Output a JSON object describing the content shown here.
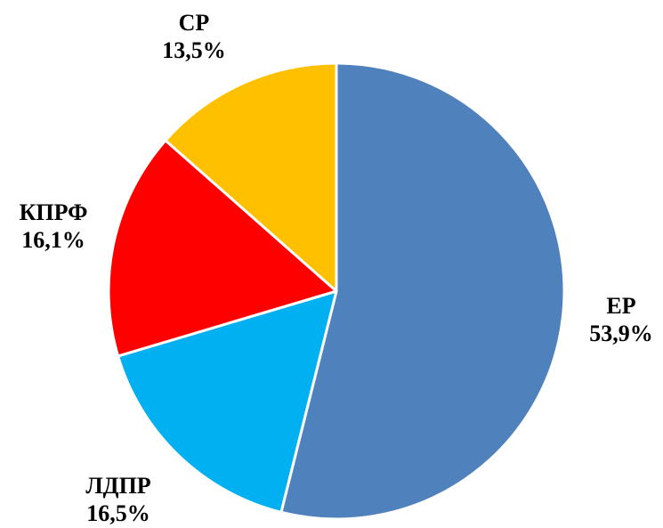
{
  "chart_data": {
    "type": "pie",
    "title": "",
    "legend": "none",
    "slices": [
      {
        "name": "ЕР",
        "value": 53.9,
        "value_label": "53,9%",
        "color": "#4F81BD"
      },
      {
        "name": "ЛДПР",
        "value": 16.5,
        "value_label": "16,5%",
        "color": "#00B0F0"
      },
      {
        "name": "КПРФ",
        "value": 16.1,
        "value_label": "16,1%",
        "color": "#FF0000"
      },
      {
        "name": "СР",
        "value": 13.5,
        "value_label": "13,5%",
        "color": "#FFC000"
      }
    ]
  }
}
